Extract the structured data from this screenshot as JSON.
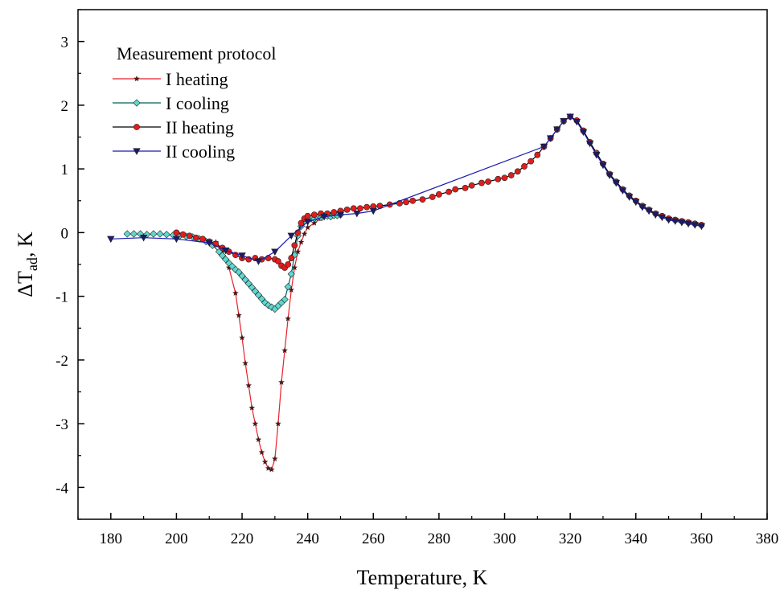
{
  "chart_data": {
    "type": "line",
    "title": "",
    "xlabel": "Temperature, K",
    "ylabel": {
      "main": "ΔT",
      "sub": "ad",
      "suffix": ", K"
    },
    "xlim": [
      170,
      380
    ],
    "ylim": [
      -4.5,
      3.5
    ],
    "x_ticks": [
      180,
      200,
      220,
      240,
      260,
      280,
      300,
      320,
      340,
      360,
      380
    ],
    "y_ticks": [
      -4,
      -3,
      -2,
      -1,
      0,
      1,
      2,
      3
    ],
    "grid": false,
    "legend": {
      "title": "Measurement protocol",
      "position": "top-left"
    },
    "series": [
      {
        "name": "I heating",
        "color": "#e8202a",
        "marker": "star",
        "marker_color": "#4a1a1a",
        "x": [
          212,
          214,
          216,
          218,
          219,
          220,
          221,
          222,
          223,
          224,
          225,
          226,
          227,
          228,
          229,
          230,
          231,
          232,
          233,
          234,
          235,
          236,
          237,
          238,
          239,
          240,
          242,
          244,
          246,
          248
        ],
        "y": [
          -0.15,
          -0.3,
          -0.55,
          -0.95,
          -1.3,
          -1.65,
          -2.05,
          -2.4,
          -2.75,
          -3.0,
          -3.25,
          -3.45,
          -3.6,
          -3.7,
          -3.72,
          -3.55,
          -3.0,
          -2.35,
          -1.85,
          -1.35,
          -0.9,
          -0.55,
          -0.3,
          -0.15,
          -0.02,
          0.08,
          0.15,
          0.22,
          0.28,
          0.3
        ]
      },
      {
        "name": "I cooling",
        "color": "#00605a",
        "marker": "diamond",
        "marker_color": "#5fd8d0",
        "x": [
          185,
          187,
          189,
          191,
          193,
          195,
          197,
          199,
          201,
          203,
          205,
          207,
          209,
          211,
          213,
          214,
          215,
          216,
          217,
          218,
          219,
          220,
          221,
          222,
          223,
          224,
          225,
          226,
          227,
          228,
          229,
          230,
          231,
          232,
          233,
          234,
          235,
          236,
          237,
          238,
          239,
          240,
          241,
          242,
          243,
          244,
          245,
          246,
          247,
          248,
          249,
          250
        ],
        "y": [
          -0.02,
          -0.02,
          -0.02,
          -0.03,
          -0.02,
          -0.02,
          -0.03,
          -0.04,
          -0.05,
          -0.06,
          -0.07,
          -0.1,
          -0.14,
          -0.2,
          -0.3,
          -0.36,
          -0.42,
          -0.48,
          -0.53,
          -0.58,
          -0.62,
          -0.68,
          -0.74,
          -0.8,
          -0.86,
          -0.92,
          -0.98,
          -1.04,
          -1.1,
          -1.14,
          -1.17,
          -1.2,
          -1.15,
          -1.1,
          -1.05,
          -0.85,
          -0.65,
          -0.35,
          -0.05,
          0.1,
          0.18,
          0.2,
          0.22,
          0.22,
          0.24,
          0.24,
          0.26,
          0.26,
          0.25,
          0.27,
          0.27,
          0.28
        ]
      },
      {
        "name": "II heating",
        "color": "#000000",
        "marker": "circle",
        "marker_color": "#e21c1c",
        "x": [
          200,
          202,
          204,
          206,
          208,
          210,
          212,
          214,
          216,
          218,
          220,
          222,
          224,
          226,
          228,
          230,
          231,
          232,
          233,
          234,
          235,
          236,
          237,
          238,
          239,
          240,
          242,
          244,
          246,
          248,
          250,
          252,
          254,
          256,
          258,
          260,
          262,
          265,
          268,
          270,
          272,
          275,
          278,
          280,
          283,
          285,
          288,
          290,
          293,
          295,
          298,
          300,
          302,
          304,
          306,
          308,
          310,
          312,
          314,
          316,
          318,
          320,
          322,
          324,
          326,
          328,
          330,
          332,
          334,
          336,
          338,
          340,
          342,
          344,
          346,
          348,
          350,
          352,
          354,
          356,
          358,
          360
        ],
        "y": [
          0.0,
          -0.03,
          -0.05,
          -0.08,
          -0.1,
          -0.14,
          -0.18,
          -0.24,
          -0.3,
          -0.35,
          -0.4,
          -0.42,
          -0.4,
          -0.42,
          -0.4,
          -0.42,
          -0.45,
          -0.52,
          -0.55,
          -0.5,
          -0.4,
          -0.2,
          0.0,
          0.15,
          0.22,
          0.26,
          0.28,
          0.3,
          0.3,
          0.32,
          0.34,
          0.36,
          0.38,
          0.38,
          0.4,
          0.41,
          0.42,
          0.44,
          0.46,
          0.48,
          0.5,
          0.52,
          0.56,
          0.6,
          0.64,
          0.68,
          0.7,
          0.74,
          0.78,
          0.8,
          0.84,
          0.86,
          0.9,
          0.96,
          1.04,
          1.12,
          1.22,
          1.35,
          1.48,
          1.62,
          1.75,
          1.82,
          1.76,
          1.6,
          1.42,
          1.25,
          1.08,
          0.92,
          0.8,
          0.68,
          0.58,
          0.5,
          0.42,
          0.36,
          0.3,
          0.26,
          0.22,
          0.2,
          0.18,
          0.16,
          0.14,
          0.12
        ]
      },
      {
        "name": "II cooling",
        "color": "#1a1ab0",
        "marker": "triangle-down",
        "marker_color": "#1a1a70",
        "x": [
          180,
          190,
          200,
          210,
          215,
          220,
          225,
          230,
          235,
          240,
          245,
          250,
          255,
          260,
          312,
          314,
          316,
          318,
          320,
          322,
          324,
          326,
          328,
          330,
          332,
          334,
          336,
          338,
          340,
          342,
          344,
          346,
          348,
          350,
          352,
          354,
          356,
          358,
          360
        ],
        "y": [
          -0.1,
          -0.08,
          -0.1,
          -0.16,
          -0.28,
          -0.36,
          -0.45,
          -0.3,
          -0.05,
          0.17,
          0.25,
          0.28,
          0.3,
          0.34,
          1.35,
          1.48,
          1.62,
          1.75,
          1.82,
          1.74,
          1.58,
          1.4,
          1.22,
          1.06,
          0.9,
          0.78,
          0.66,
          0.56,
          0.48,
          0.4,
          0.34,
          0.28,
          0.24,
          0.2,
          0.18,
          0.16,
          0.14,
          0.12,
          0.1
        ]
      }
    ]
  }
}
